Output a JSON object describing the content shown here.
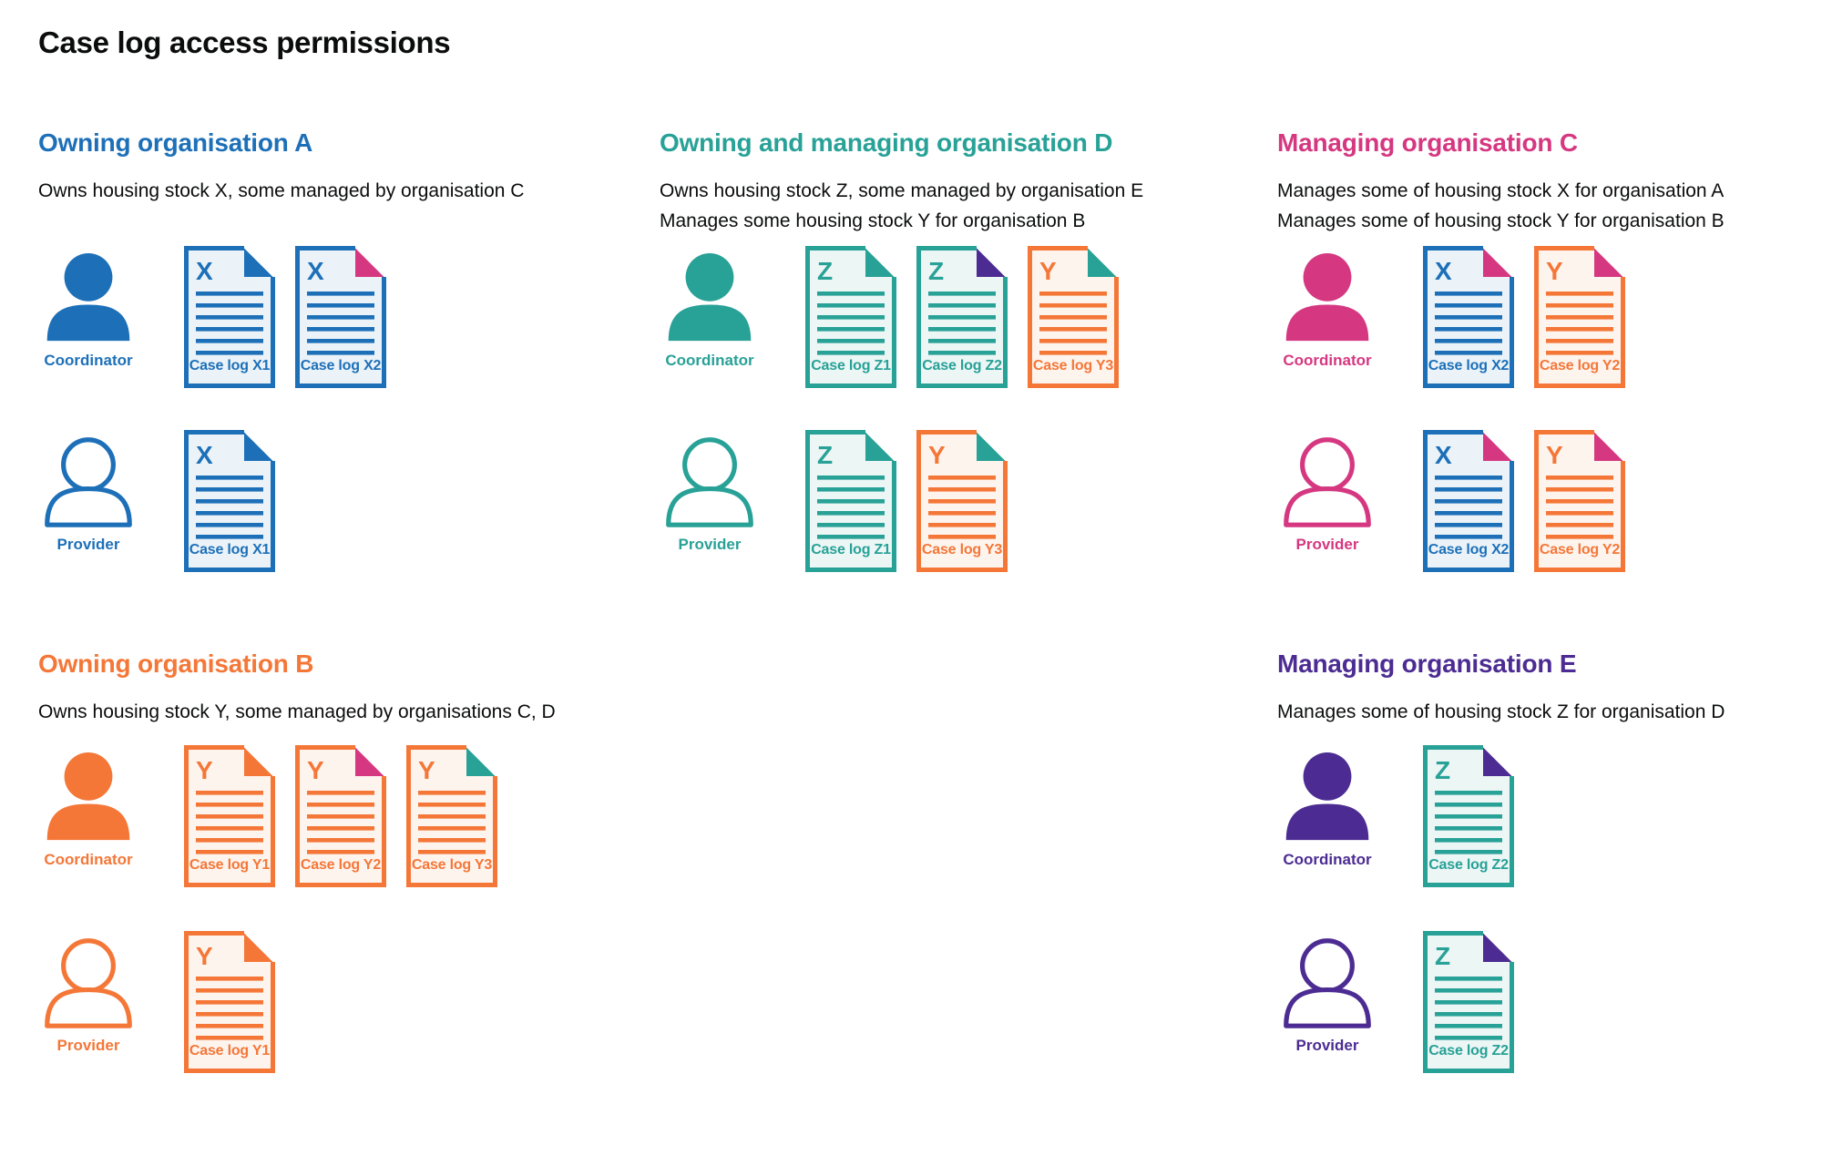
{
  "title": "Case log access permissions",
  "colors": {
    "blue": "#1d70b8",
    "teal": "#28a197",
    "pink": "#d53880",
    "orange": "#f47738",
    "purple": "#4c2c92",
    "text": "#0b0c0c",
    "tint_blue": "#ebf3f9",
    "tint_teal": "#ecf6f5",
    "tint_orange": "#fef4ee"
  },
  "sections": [
    {
      "id": "org-a",
      "title": "Owning organisation A",
      "color": "blue",
      "description": [
        "Owns housing stock X, some managed by organisation C"
      ],
      "rows": [
        {
          "role": "Coordinator",
          "person_style": "filled",
          "docs": [
            {
              "letter": "X",
              "label": "Case log X1",
              "doc_color": "blue",
              "fold_color": "blue"
            },
            {
              "letter": "X",
              "label": "Case log X2",
              "doc_color": "blue",
              "fold_color": "pink"
            }
          ]
        },
        {
          "role": "Provider",
          "person_style": "outline",
          "docs": [
            {
              "letter": "X",
              "label": "Case log X1",
              "doc_color": "blue",
              "fold_color": "blue"
            }
          ]
        }
      ]
    },
    {
      "id": "org-d",
      "title": "Owning and managing organisation D",
      "color": "teal",
      "description": [
        "Owns housing stock Z, some managed by organisation E",
        "Manages some housing stock Y for organisation B"
      ],
      "rows": [
        {
          "role": "Coordinator",
          "person_style": "filled",
          "docs": [
            {
              "letter": "Z",
              "label": "Case log Z1",
              "doc_color": "teal",
              "fold_color": "teal"
            },
            {
              "letter": "Z",
              "label": "Case log Z2",
              "doc_color": "teal",
              "fold_color": "purple"
            },
            {
              "letter": "Y",
              "label": "Case log Y3",
              "doc_color": "orange",
              "fold_color": "teal"
            }
          ]
        },
        {
          "role": "Provider",
          "person_style": "outline",
          "docs": [
            {
              "letter": "Z",
              "label": "Case log Z1",
              "doc_color": "teal",
              "fold_color": "teal"
            },
            {
              "letter": "Y",
              "label": "Case log Y3",
              "doc_color": "orange",
              "fold_color": "teal"
            }
          ]
        }
      ]
    },
    {
      "id": "org-c",
      "title": "Managing organisation C",
      "color": "pink",
      "description": [
        "Manages some of housing stock X for organisation A",
        "Manages some of housing stock Y for organisation B"
      ],
      "rows": [
        {
          "role": "Coordinator",
          "person_style": "filled",
          "docs": [
            {
              "letter": "X",
              "label": "Case log X2",
              "doc_color": "blue",
              "fold_color": "pink"
            },
            {
              "letter": "Y",
              "label": "Case log Y2",
              "doc_color": "orange",
              "fold_color": "pink"
            }
          ]
        },
        {
          "role": "Provider",
          "person_style": "outline",
          "docs": [
            {
              "letter": "X",
              "label": "Case log X2",
              "doc_color": "blue",
              "fold_color": "pink"
            },
            {
              "letter": "Y",
              "label": "Case log Y2",
              "doc_color": "orange",
              "fold_color": "pink"
            }
          ]
        }
      ]
    },
    {
      "id": "org-b",
      "title": "Owning organisation B",
      "color": "orange",
      "description": [
        "Owns housing stock Y, some managed by organisations C, D"
      ],
      "rows": [
        {
          "role": "Coordinator",
          "person_style": "filled",
          "docs": [
            {
              "letter": "Y",
              "label": "Case log Y1",
              "doc_color": "orange",
              "fold_color": "orange"
            },
            {
              "letter": "Y",
              "label": "Case log Y2",
              "doc_color": "orange",
              "fold_color": "pink"
            },
            {
              "letter": "Y",
              "label": "Case log Y3",
              "doc_color": "orange",
              "fold_color": "teal"
            }
          ]
        },
        {
          "role": "Provider",
          "person_style": "outline",
          "docs": [
            {
              "letter": "Y",
              "label": "Case log Y1",
              "doc_color": "orange",
              "fold_color": "orange"
            }
          ]
        }
      ]
    },
    {
      "id": "org-e",
      "title": "Managing organisation E",
      "color": "purple",
      "description": [
        "Manages some of housing stock Z for organisation D"
      ],
      "rows": [
        {
          "role": "Coordinator",
          "person_style": "filled",
          "docs": [
            {
              "letter": "Z",
              "label": "Case log Z2",
              "doc_color": "teal",
              "fold_color": "purple"
            }
          ]
        },
        {
          "role": "Provider",
          "person_style": "outline",
          "docs": [
            {
              "letter": "Z",
              "label": "Case log Z2",
              "doc_color": "teal",
              "fold_color": "purple"
            }
          ]
        }
      ]
    }
  ]
}
